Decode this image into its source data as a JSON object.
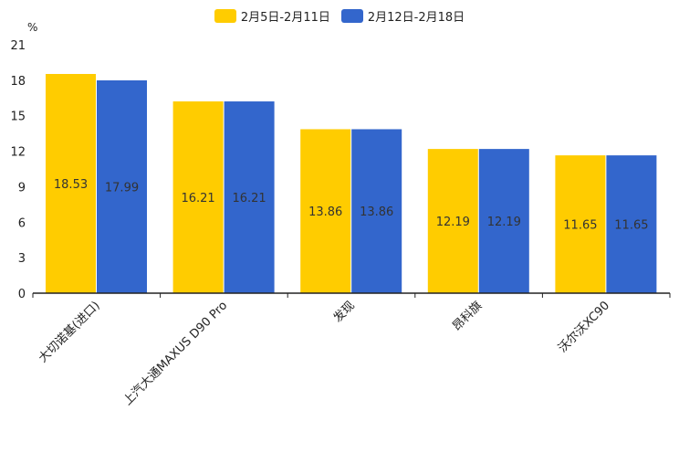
{
  "chart_data": {
    "type": "bar",
    "ylabel": "%",
    "ylim": [
      0,
      21
    ],
    "yticks": [
      0,
      3,
      6,
      9,
      12,
      15,
      18,
      21
    ],
    "categories": [
      "大切诺基(进口)",
      "上汽大通MAXUS D90 Pro",
      "发现",
      "昂科旗",
      "沃尔沃XC90"
    ],
    "series": [
      {
        "name": "2月5日-2月11日",
        "color": "#ffcc00",
        "values": [
          18.53,
          16.21,
          13.86,
          12.19,
          11.65
        ]
      },
      {
        "name": "2月12日-2月18日",
        "color": "#3366cc",
        "values": [
          17.99,
          16.21,
          13.86,
          12.19,
          11.65
        ]
      }
    ],
    "legend": "top-center"
  }
}
